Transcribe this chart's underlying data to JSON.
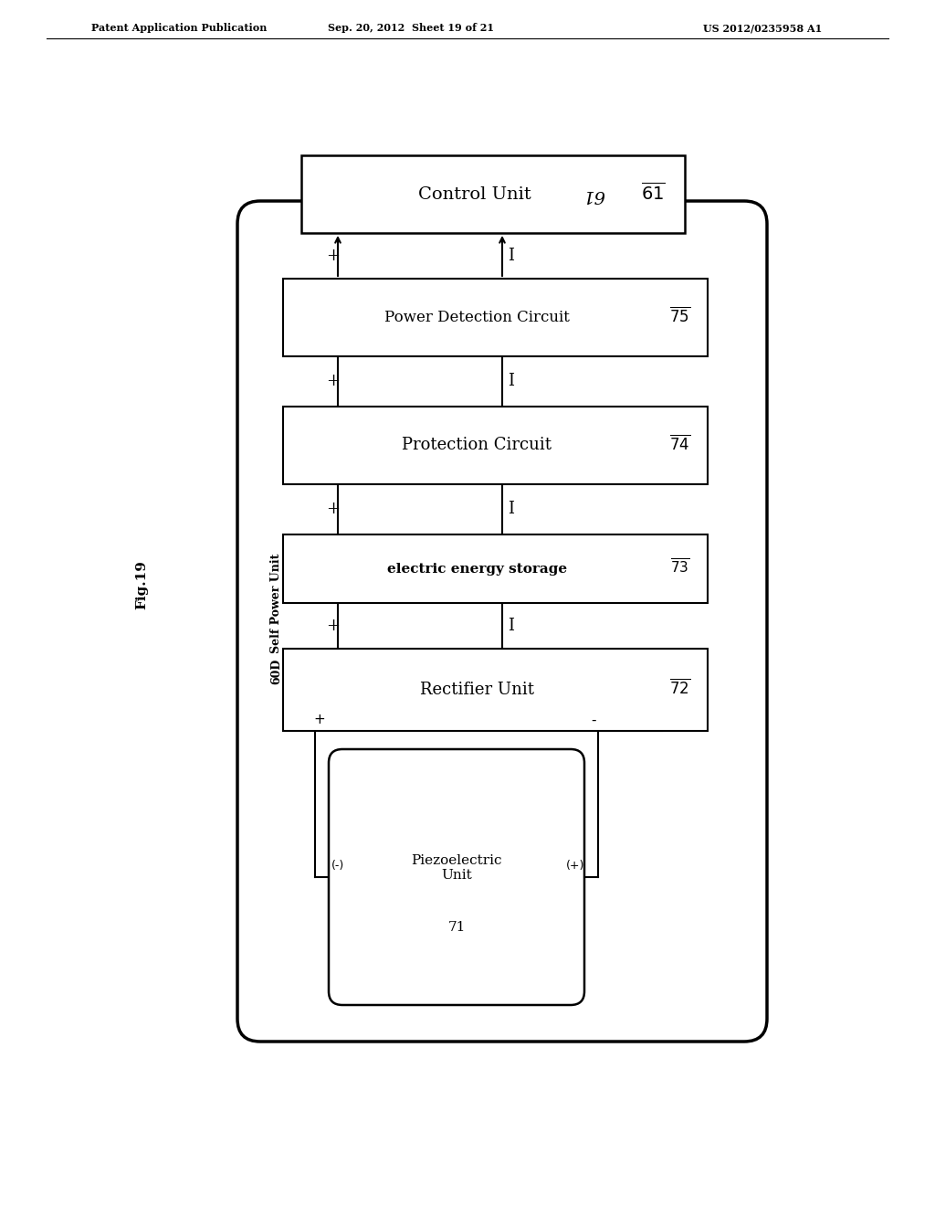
{
  "bg_color": "#ffffff",
  "header_left": "Patent Application Publication",
  "header_mid": "Sep. 20, 2012  Sheet 19 of 21",
  "header_right": "US 2012/0235958 A1",
  "fig_label": "Fig.19",
  "control_unit_label": "Control Unit",
  "control_unit_num": "61",
  "power_detect_label": "Power Detection Circuit",
  "power_detect_num": "75",
  "protection_label": "Protection Circuit",
  "protection_num": "74",
  "energy_storage_label": "electric energy storage",
  "energy_storage_num": "73",
  "rectifier_label": "Rectifier Unit",
  "rectifier_num": "72",
  "piezo_label": "Piezoelectric\nUnit",
  "piezo_num": "71",
  "self_power_label": "Self Power Unit",
  "self_power_num": "60D"
}
